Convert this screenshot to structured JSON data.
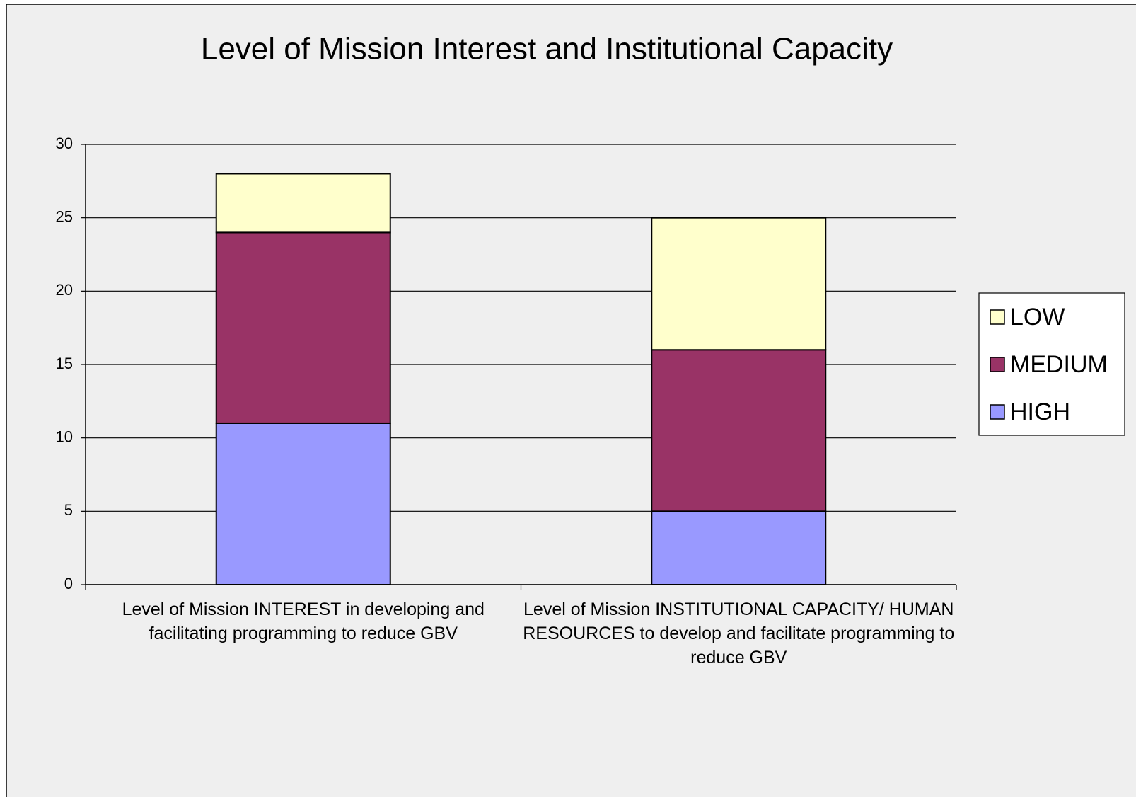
{
  "chart_data": {
    "type": "stacked_bar",
    "title": "Level of Mission Interest and Institutional Capacity",
    "categories": [
      "Level of Mission INTEREST in developing and facilitating programming to reduce GBV",
      "Level of Mission INSTITUTIONAL CAPACITY/ HUMAN RESOURCES to develop and facilitate programming to reduce GBV"
    ],
    "series": [
      {
        "name": "HIGH",
        "color": "#9999ff",
        "values": [
          11,
          5
        ]
      },
      {
        "name": "MEDIUM",
        "color": "#993366",
        "values": [
          13,
          11
        ]
      },
      {
        "name": "LOW",
        "color": "#ffffcc",
        "values": [
          4,
          9
        ]
      }
    ],
    "ylim": [
      0,
      30
    ],
    "yticks": [
      0,
      5,
      10,
      15,
      20,
      25,
      30
    ],
    "grid": true,
    "legend": "right"
  }
}
